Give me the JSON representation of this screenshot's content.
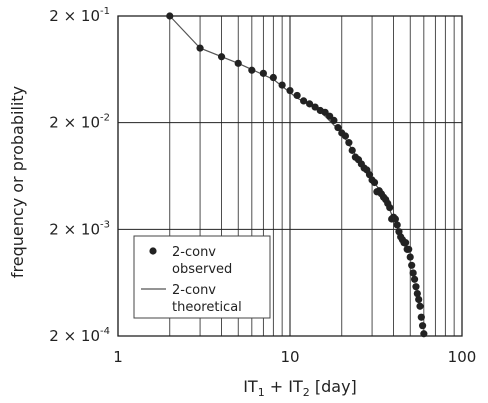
{
  "chart_data": {
    "type": "scatter",
    "x_scale": "log",
    "y_scale": "log",
    "xlim": [
      1,
      100
    ],
    "ylim": [
      0.0002,
      0.2
    ],
    "xlabel": {
      "main": "IT",
      "sub1": "1",
      "plus": " + IT",
      "sub2": "2",
      "unit": " [day]"
    },
    "ylabel": "frequency or probability",
    "x_ticks": [
      {
        "value": 1,
        "label": "1"
      },
      {
        "value": 10,
        "label": "10"
      },
      {
        "value": 100,
        "label": "100"
      }
    ],
    "y_ticks": [
      {
        "value": 0.2,
        "mantissa": "2",
        "times": "×",
        "base": "10",
        "exp": "-1"
      },
      {
        "value": 0.02,
        "mantissa": "2",
        "times": "×",
        "base": "10",
        "exp": "-2"
      },
      {
        "value": 0.002,
        "mantissa": "2",
        "times": "×",
        "base": "10",
        "exp": "-3"
      },
      {
        "value": 0.0002,
        "mantissa": "2",
        "times": "×",
        "base": "10",
        "exp": "-4"
      }
    ],
    "grid": true,
    "legend_position": "bottom-left",
    "series": [
      {
        "name": "2-conv observed",
        "legend_line1": "2-conv",
        "legend_line2": "observed",
        "style": "markers",
        "color": "#222222",
        "x": [
          2,
          3,
          4,
          5,
          6,
          7,
          8,
          9,
          10,
          11,
          12,
          13,
          14,
          15,
          16,
          17,
          18,
          19,
          20,
          21,
          22,
          23,
          24,
          25,
          26,
          27,
          28,
          29,
          30,
          31,
          32,
          33,
          34,
          35,
          36,
          37,
          38,
          39,
          40,
          41,
          42,
          43,
          44,
          45,
          46,
          47,
          48,
          49,
          50,
          51,
          52,
          53,
          54,
          55,
          56,
          57,
          58,
          59,
          60
        ],
        "y": [
          0.2,
          0.1,
          0.083,
          0.072,
          0.062,
          0.058,
          0.053,
          0.045,
          0.04,
          0.036,
          0.032,
          0.03,
          0.028,
          0.026,
          0.025,
          0.023,
          0.021,
          0.018,
          0.016,
          0.015,
          0.013,
          0.011,
          0.0095,
          0.009,
          0.0082,
          0.0075,
          0.0072,
          0.0065,
          0.0058,
          0.0055,
          0.0045,
          0.0046,
          0.0043,
          0.004,
          0.0038,
          0.0035,
          0.0032,
          0.0025,
          0.0026,
          0.0025,
          0.0022,
          0.0019,
          0.0017,
          0.0016,
          0.0015,
          0.0015,
          0.0013,
          0.0013,
          0.0011,
          0.00092,
          0.00078,
          0.00068,
          0.00058,
          0.0005,
          0.00044,
          0.00038,
          0.0003,
          0.00025,
          0.00021
        ]
      },
      {
        "name": "2-conv theoretical",
        "legend_line1": "2-conv",
        "legend_line2": "theoretical",
        "style": "line",
        "color": "#555555",
        "x": [
          2,
          3,
          5,
          8,
          11,
          14,
          16,
          20,
          25,
          30,
          35,
          40,
          45,
          48
        ],
        "y": [
          0.2,
          0.1,
          0.072,
          0.051,
          0.034,
          0.028,
          0.023,
          0.016,
          0.009,
          0.0058,
          0.0042,
          0.0025,
          0.0016,
          0.0012
        ]
      }
    ]
  }
}
